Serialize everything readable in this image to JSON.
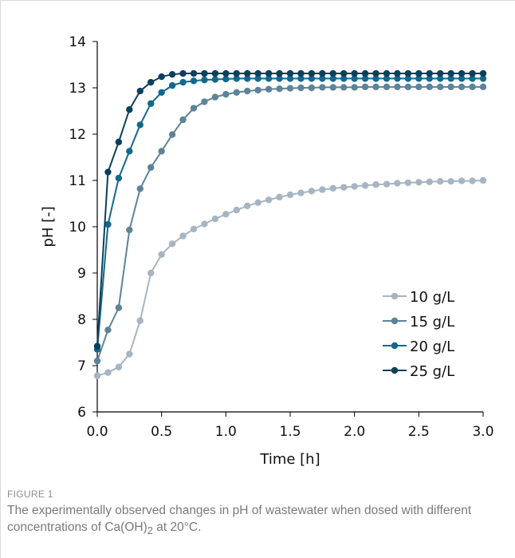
{
  "figure": {
    "label": "FIGURE 1",
    "caption_before": "The experimentally observed changes in pH of wastewater when dosed with different concentrations of Ca(OH)",
    "caption_sub": "2",
    "caption_after": " at 20°C."
  },
  "chart_data": {
    "type": "line",
    "title": "",
    "xlabel": "Time [h]",
    "ylabel": "pH [-]",
    "xlim": [
      0,
      3
    ],
    "ylim": [
      6,
      14
    ],
    "xticks": [
      "0.0",
      "0.5",
      "1.0",
      "1.5",
      "2.0",
      "2.5",
      "3.0"
    ],
    "yticks": [
      "6",
      "7",
      "8",
      "9",
      "10",
      "11",
      "12",
      "13",
      "14"
    ],
    "grid": false,
    "legend_position": "lower-right",
    "x": [
      0.0,
      0.0833,
      0.1667,
      0.25,
      0.3333,
      0.4167,
      0.5,
      0.5833,
      0.6667,
      0.75,
      0.8333,
      0.9167,
      1.0,
      1.0833,
      1.1667,
      1.25,
      1.3333,
      1.4167,
      1.5,
      1.5833,
      1.6667,
      1.75,
      1.8333,
      1.9167,
      2.0,
      2.0833,
      2.1667,
      2.25,
      2.3333,
      2.4167,
      2.5,
      2.5833,
      2.6667,
      2.75,
      2.8333,
      2.9167,
      3.0
    ],
    "series": [
      {
        "name": "10 g/L",
        "color": "#a7b5c2",
        "values": [
          6.78,
          6.85,
          6.97,
          7.25,
          7.97,
          9.0,
          9.4,
          9.63,
          9.8,
          9.95,
          10.06,
          10.17,
          10.27,
          10.36,
          10.45,
          10.52,
          10.58,
          10.64,
          10.69,
          10.73,
          10.77,
          10.8,
          10.83,
          10.85,
          10.87,
          10.89,
          10.91,
          10.92,
          10.94,
          10.95,
          10.96,
          10.97,
          10.98,
          10.98,
          10.99,
          10.99,
          11.0
        ]
      },
      {
        "name": "15 g/L",
        "color": "#5d8399",
        "values": [
          7.1,
          7.77,
          8.25,
          9.93,
          10.82,
          11.28,
          11.63,
          11.99,
          12.31,
          12.56,
          12.7,
          12.8,
          12.86,
          12.9,
          12.93,
          12.95,
          12.97,
          12.98,
          12.99,
          13.0,
          13.0,
          13.01,
          13.01,
          13.01,
          13.01,
          13.02,
          13.02,
          13.02,
          13.02,
          13.02,
          13.02,
          13.02,
          13.02,
          13.02,
          13.02,
          13.02,
          13.02
        ]
      },
      {
        "name": "20 g/L",
        "color": "#12698a",
        "values": [
          7.35,
          10.05,
          11.05,
          11.63,
          12.2,
          12.66,
          12.9,
          13.05,
          13.12,
          13.15,
          13.17,
          13.18,
          13.19,
          13.2,
          13.2,
          13.2,
          13.2,
          13.2,
          13.2,
          13.2,
          13.2,
          13.2,
          13.2,
          13.2,
          13.2,
          13.2,
          13.2,
          13.2,
          13.2,
          13.2,
          13.2,
          13.2,
          13.2,
          13.2,
          13.2,
          13.2,
          13.2
        ]
      },
      {
        "name": "25 g/L",
        "color": "#0c3f5c",
        "values": [
          7.42,
          11.18,
          11.83,
          12.53,
          12.93,
          13.12,
          13.24,
          13.29,
          13.31,
          13.31,
          13.31,
          13.31,
          13.31,
          13.31,
          13.31,
          13.31,
          13.31,
          13.31,
          13.31,
          13.31,
          13.31,
          13.31,
          13.31,
          13.31,
          13.31,
          13.31,
          13.31,
          13.31,
          13.31,
          13.31,
          13.31,
          13.31,
          13.31,
          13.31,
          13.31,
          13.31,
          13.31
        ]
      }
    ]
  }
}
